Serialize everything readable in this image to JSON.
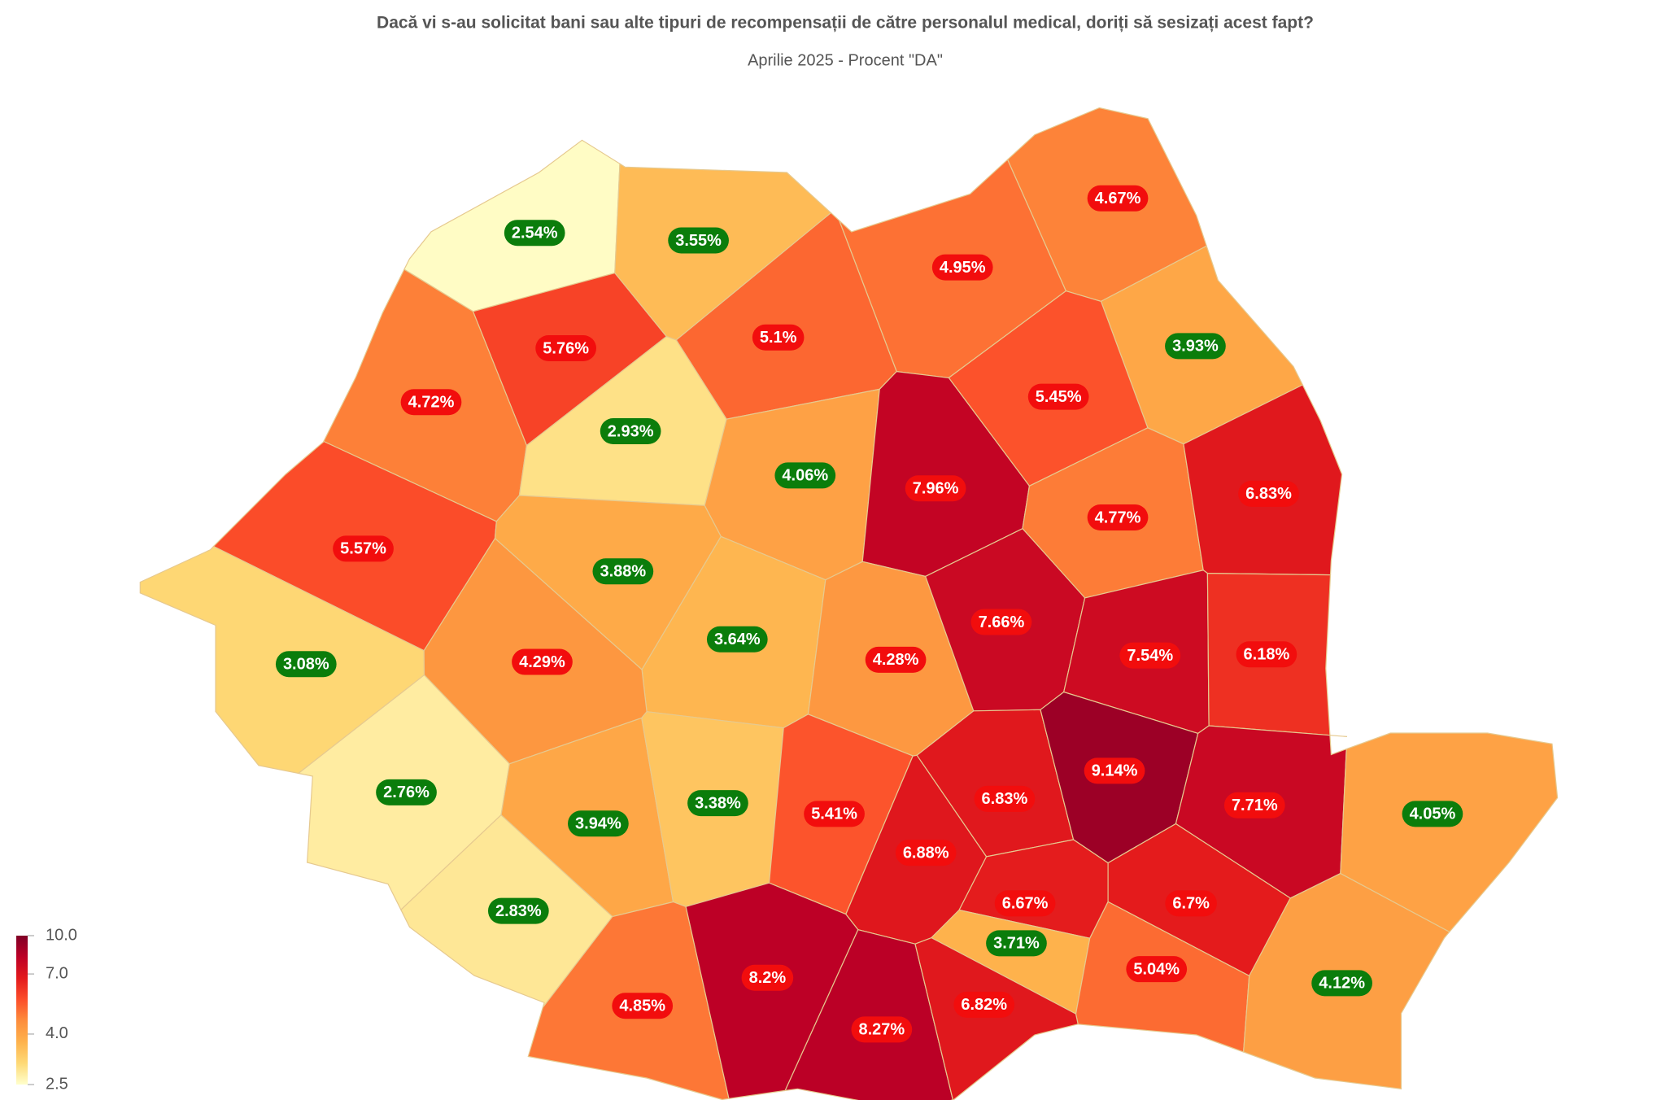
{
  "chart_data": {
    "type": "choropleth",
    "title": "Dacă vi s-au solicitat bani sau alte tipuri de recompensații de către personalul medical, doriți să sesizați acest fapt?",
    "subtitle": "Aprilie 2025 - Procent \"DA\"",
    "values": [
      2.54,
      3.55,
      4.67,
      4.95,
      5.76,
      5.1,
      3.93,
      4.72,
      2.93,
      5.45,
      4.06,
      7.96,
      4.77,
      6.83,
      5.57,
      3.88,
      3.64,
      4.28,
      7.66,
      7.54,
      6.18,
      3.08,
      4.29,
      2.76,
      3.94,
      3.38,
      5.41,
      6.88,
      6.83,
      9.14,
      7.71,
      4.05,
      2.83,
      6.67,
      3.71,
      6.7,
      5.04,
      4.12,
      4.85,
      8.2,
      8.27,
      6.82
    ],
    "value_labels": [
      "2.54%",
      "3.55%",
      "4.67%",
      "4.95%",
      "5.76%",
      "5.1%",
      "3.93%",
      "4.72%",
      "2.93%",
      "5.45%",
      "4.06%",
      "7.96%",
      "4.77%",
      "6.83%",
      "5.57%",
      "3.88%",
      "3.64%",
      "4.28%",
      "7.66%",
      "7.54%",
      "6.18%",
      "3.08%",
      "4.29%",
      "2.76%",
      "3.94%",
      "3.38%",
      "5.41%",
      "6.88%",
      "6.83%",
      "9.14%",
      "7.71%",
      "4.05%",
      "2.83%",
      "6.67%",
      "3.71%",
      "6.7%",
      "5.04%",
      "4.12%",
      "4.85%",
      "8.2%",
      "8.27%",
      "6.82%"
    ],
    "label_colors": [
      "#0b7d0b",
      "#0b7d0b",
      "#f20d0d",
      "#f20d0d",
      "#f20d0d",
      "#f20d0d",
      "#0b7d0b",
      "#f20d0d",
      "#0b7d0b",
      "#f20d0d",
      "#0b7d0b",
      "#f20d0d",
      "#f20d0d",
      "#f20d0d",
      "#f20d0d",
      "#0b7d0b",
      "#0b7d0b",
      "#f20d0d",
      "#f20d0d",
      "#f20d0d",
      "#f20d0d",
      "#0b7d0b",
      "#f20d0d",
      "#0b7d0b",
      "#0b7d0b",
      "#0b7d0b",
      "#f20d0d",
      "#f20d0d",
      "#f20d0d",
      "#f20d0d",
      "#f20d0d",
      "#0b7d0b",
      "#0b7d0b",
      "#f20d0d",
      "#0b7d0b",
      "#f20d0d",
      "#f20d0d",
      "#0b7d0b",
      "#f20d0d",
      "#f20d0d",
      "#f20d0d",
      "#f20d0d"
    ],
    "colorbar": {
      "lim": [
        2.5,
        10
      ],
      "log": true,
      "ticks": [
        {
          "value": 10,
          "label": "10.0"
        },
        {
          "value": 7,
          "label": "7.0"
        },
        {
          "value": 4,
          "label": "4.0"
        },
        2.5
      ],
      "colors": [
        "#ffffcc",
        "#fed976",
        "#feb24c",
        "#fd8d3c",
        "#fc4e2a",
        "#e31a1c",
        "#bd0026",
        "#800026"
      ]
    }
  }
}
